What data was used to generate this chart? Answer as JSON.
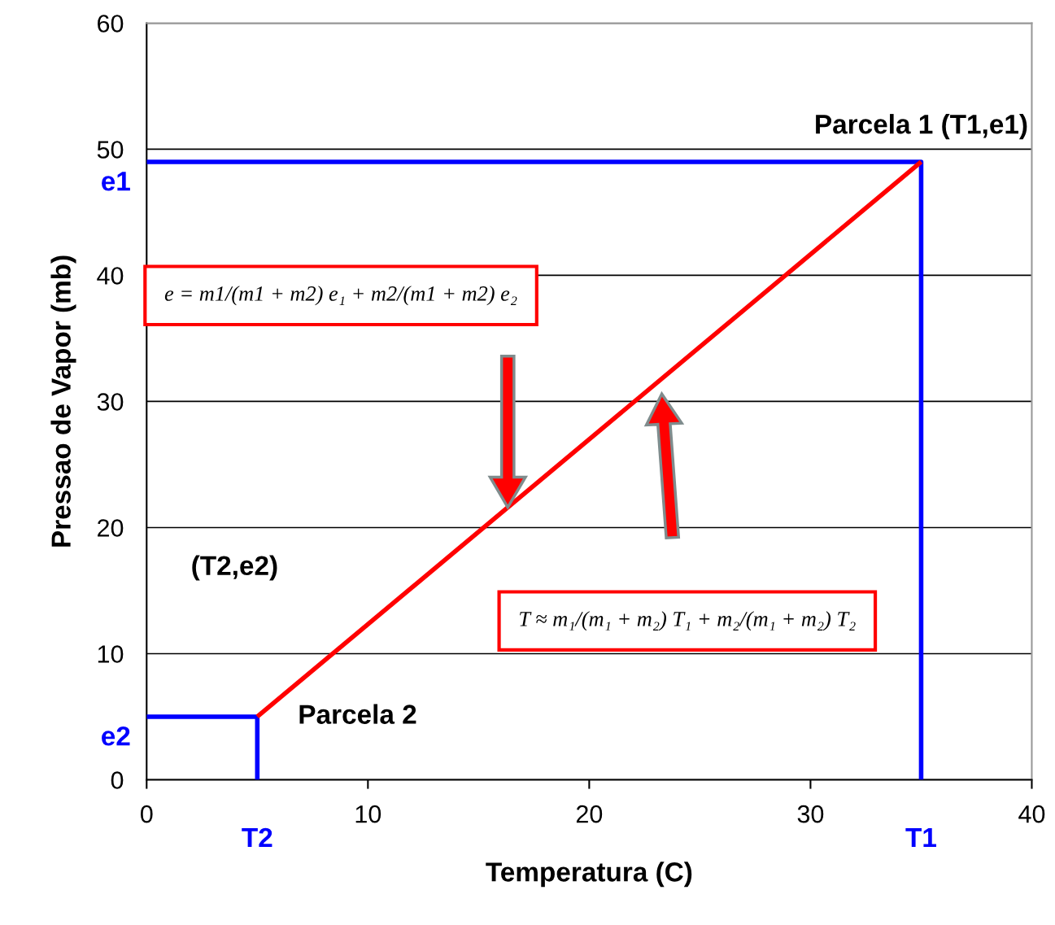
{
  "chart_data": {
    "type": "line",
    "xlabel": "Temperatura (C)",
    "ylabel": "Pressao de Vapor (mb)",
    "xlim": [
      0,
      40
    ],
    "xticks": [
      0,
      10,
      20,
      30,
      40
    ],
    "ylim": [
      0,
      60
    ],
    "yticks": [
      0,
      10,
      20,
      30,
      40,
      50,
      60
    ],
    "grid": "y",
    "legend": false,
    "series": [
      {
        "color": "#0000ff",
        "x": [
          0,
          35,
          35
        ],
        "values": [
          49,
          49,
          0
        ]
      },
      {
        "color": "#0000ff",
        "x": [
          0,
          5,
          5
        ],
        "values": [
          5,
          5,
          0
        ]
      },
      {
        "color": "#ff0000",
        "x": [
          5,
          35
        ],
        "values": [
          5,
          49
        ]
      }
    ],
    "annotations": [
      {
        "text": "Parcela 1 (T1,e1)",
        "x": 35,
        "y": 49
      },
      {
        "text": "Parcela 2",
        "x": 5,
        "y": 5
      },
      {
        "text": "T1",
        "x": 35,
        "y": 0
      },
      {
        "text": "T2",
        "x": 5,
        "y": 0
      },
      {
        "text": "e1",
        "x": 0,
        "y": 49
      },
      {
        "text": "e2",
        "x": 0,
        "y": 5
      },
      "(T2,e2)",
      "e = m1/(m1 + m2) e₁ + m2/(m1 + m2) e₂",
      "T ≈ m₁/(m₁ + m₂) T₁ + m₂/(m₁ + m₂) T₂"
    ]
  }
}
